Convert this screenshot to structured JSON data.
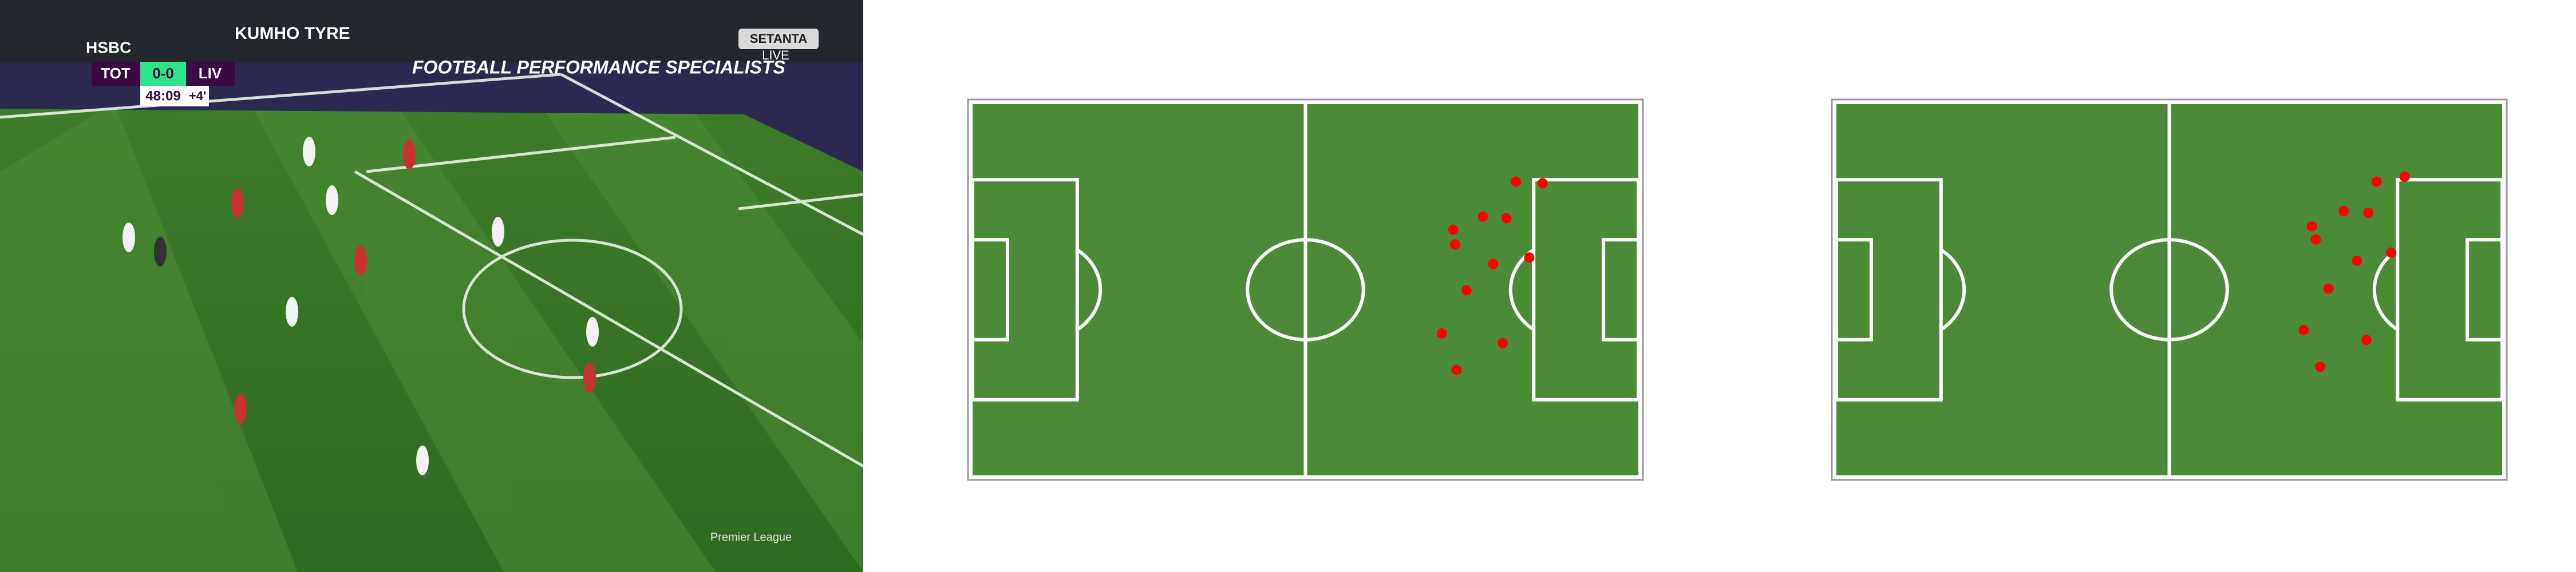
{
  "video": {
    "scoreboard": {
      "home": "TOT",
      "score": "0-0",
      "away": "LIV",
      "clock": "48:09",
      "added": "+4'"
    },
    "broadcaster": {
      "name": "SETANTA",
      "tag": "LIVE"
    },
    "boards": [
      "HSBC",
      "KUMHO TYRE",
      "FOOTBALL PERFORMANCE SPECIALISTS"
    ],
    "league": "Premier League"
  },
  "pitches": [
    {
      "players": [
        {
          "x": 85.7,
          "y": 14.2
        },
        {
          "x": 89.9,
          "y": 14.5
        },
        {
          "x": 75.8,
          "y": 23.0
        },
        {
          "x": 80.5,
          "y": 20.6
        },
        {
          "x": 84.2,
          "y": 20.9
        },
        {
          "x": 76.1,
          "y": 25.7
        },
        {
          "x": 87.8,
          "y": 28.1
        },
        {
          "x": 82.1,
          "y": 29.3
        },
        {
          "x": 77.9,
          "y": 34.1
        },
        {
          "x": 74.0,
          "y": 42.0
        },
        {
          "x": 83.6,
          "y": 43.8
        },
        {
          "x": 76.3,
          "y": 48.7
        }
      ]
    },
    {
      "players": [
        {
          "x": 85.2,
          "y": 14.2
        },
        {
          "x": 89.6,
          "y": 13.3
        },
        {
          "x": 75.0,
          "y": 22.4
        },
        {
          "x": 80.0,
          "y": 19.6
        },
        {
          "x": 83.9,
          "y": 19.9
        },
        {
          "x": 75.6,
          "y": 24.8
        },
        {
          "x": 87.5,
          "y": 27.2
        },
        {
          "x": 82.1,
          "y": 28.7
        },
        {
          "x": 77.6,
          "y": 33.8
        },
        {
          "x": 73.7,
          "y": 41.4
        },
        {
          "x": 83.6,
          "y": 43.2
        },
        {
          "x": 76.3,
          "y": 48.1
        }
      ]
    }
  ]
}
